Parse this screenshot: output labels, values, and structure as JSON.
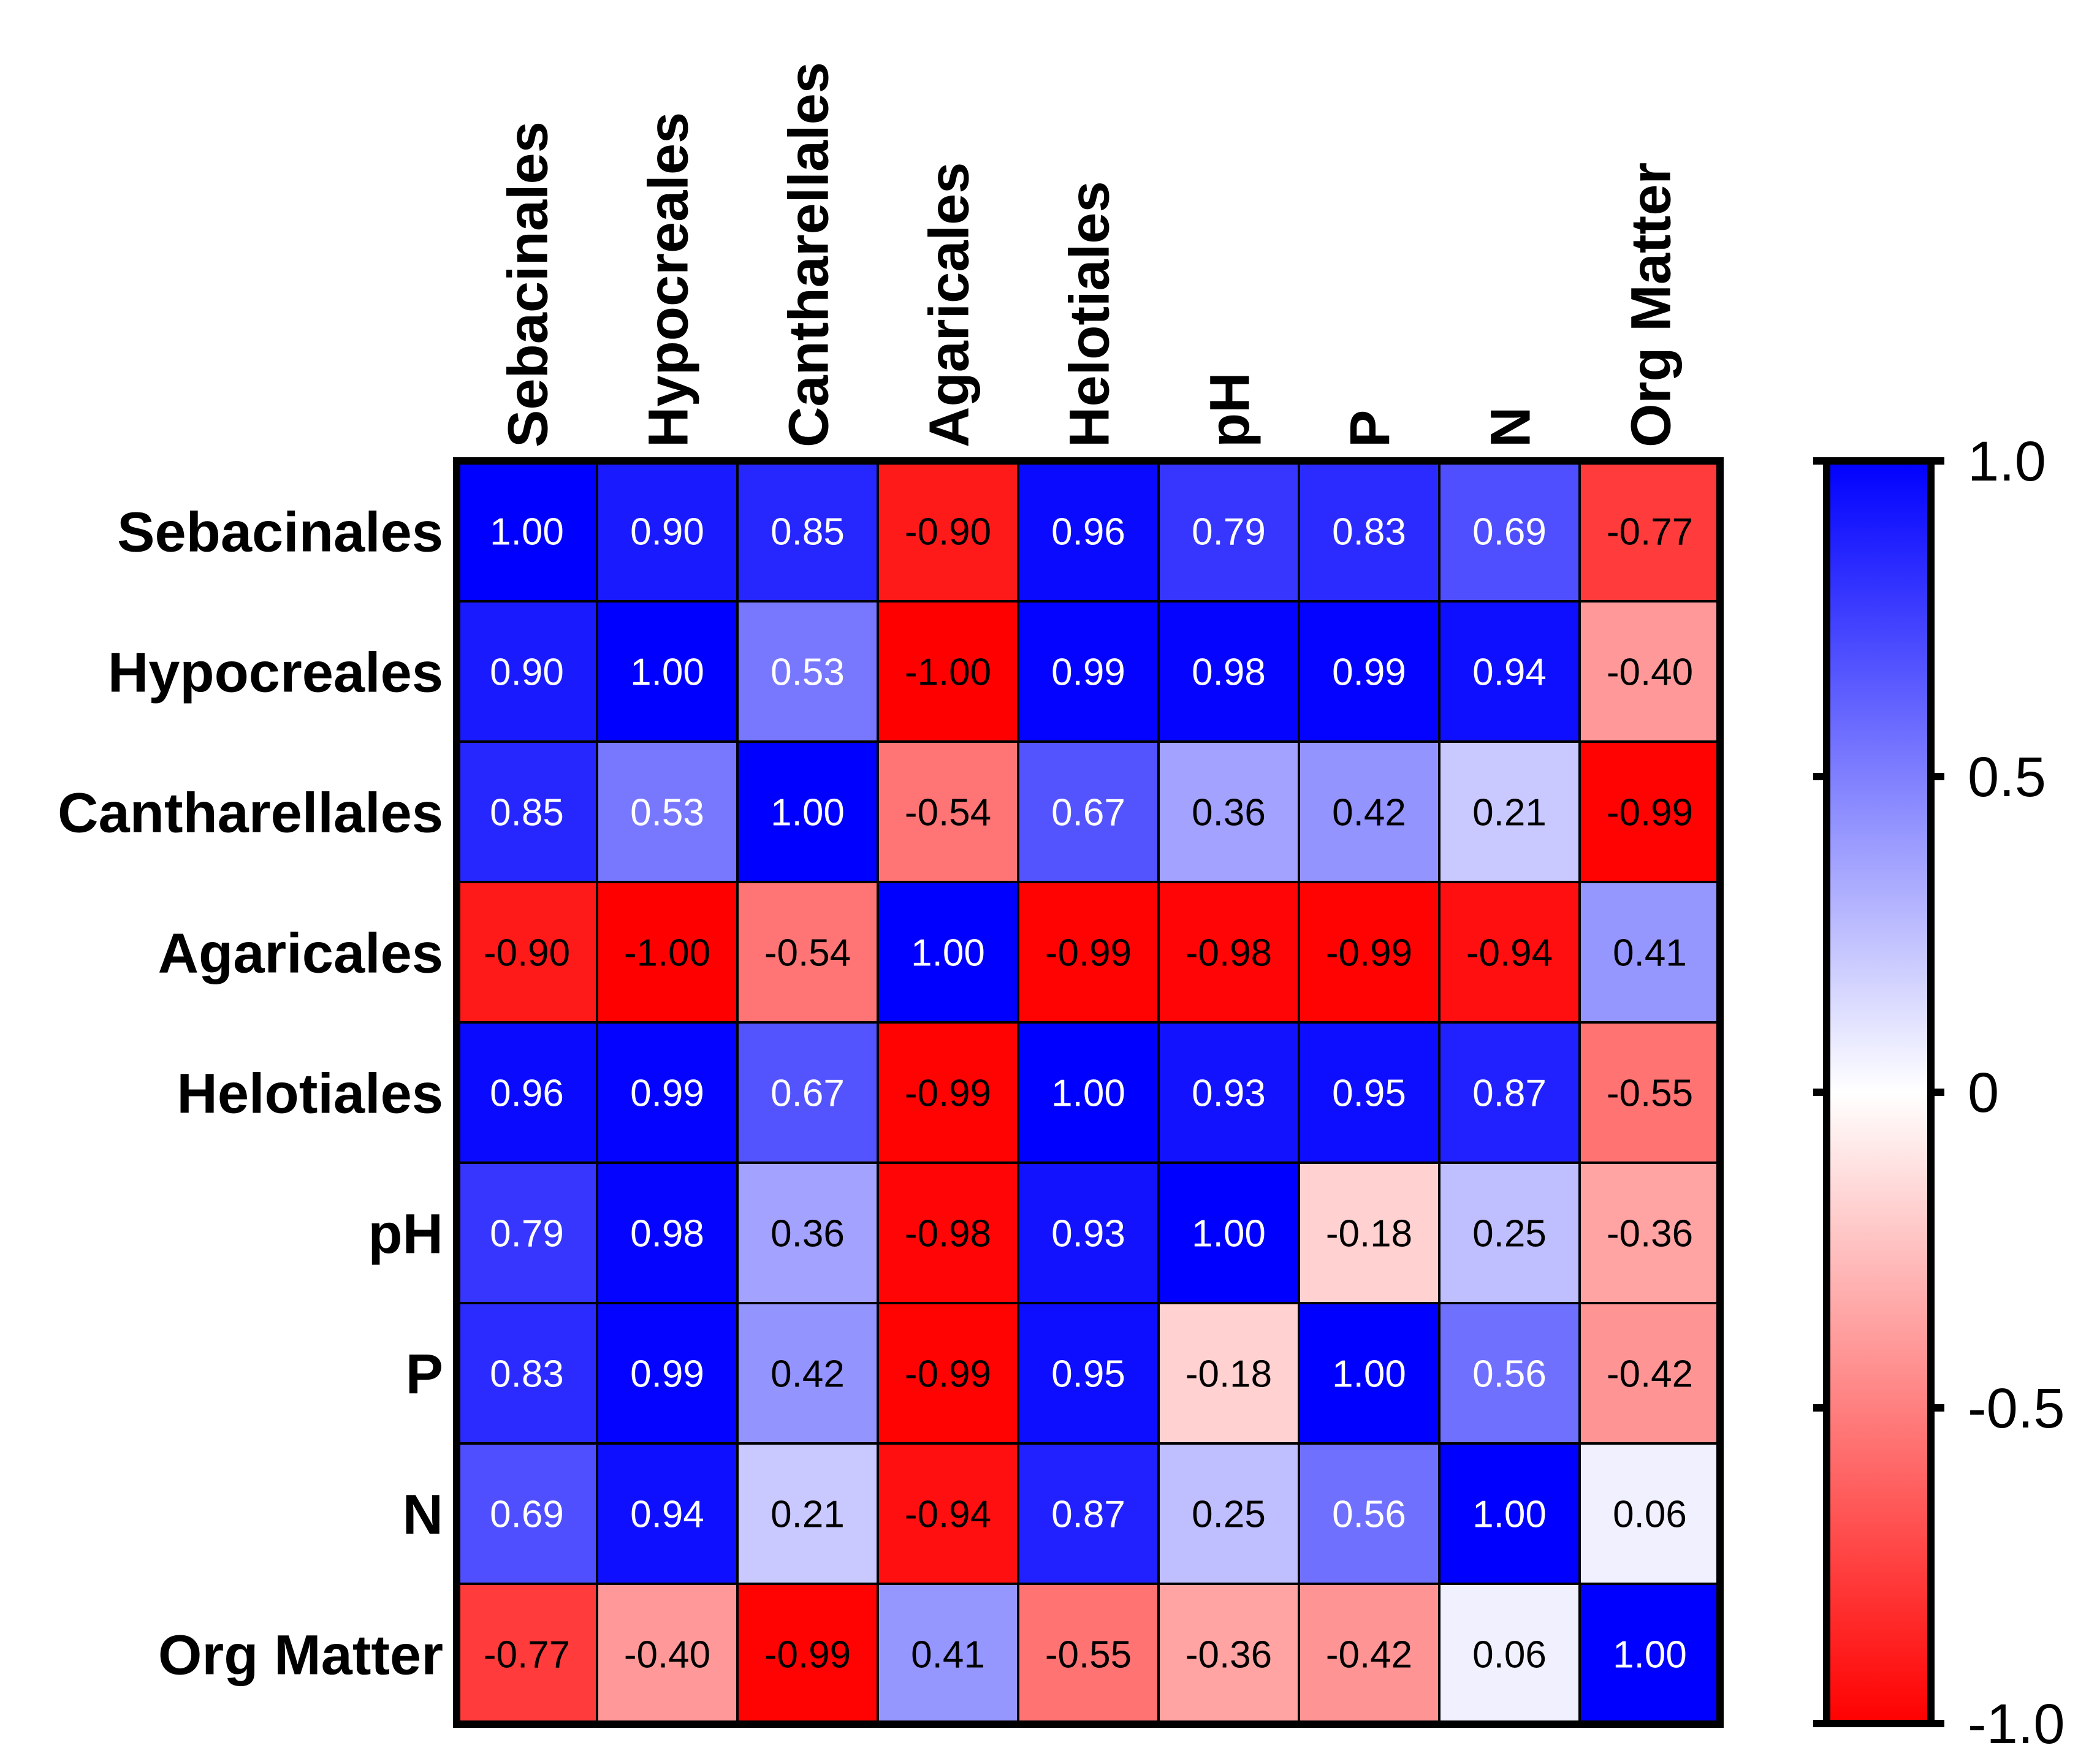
{
  "chart_data": {
    "type": "heatmap",
    "title": "",
    "row_labels": [
      "Sebacinales",
      "Hypocreales",
      "Cantharellales",
      "Agaricales",
      "Helotiales",
      "pH",
      "P",
      "N",
      "Org Matter"
    ],
    "col_labels": [
      "Sebacinales",
      "Hypocreales",
      "Cantharellales",
      "Agaricales",
      "Helotiales",
      "pH",
      "P",
      "N",
      "Org Matter"
    ],
    "values": [
      [
        1.0,
        0.9,
        0.85,
        -0.9,
        0.96,
        0.79,
        0.83,
        0.69,
        -0.77
      ],
      [
        0.9,
        1.0,
        0.53,
        -1.0,
        0.99,
        0.98,
        0.99,
        0.94,
        -0.4
      ],
      [
        0.85,
        0.53,
        1.0,
        -0.54,
        0.67,
        0.36,
        0.42,
        0.21,
        -0.99
      ],
      [
        -0.9,
        -1.0,
        -0.54,
        1.0,
        -0.99,
        -0.98,
        -0.99,
        -0.94,
        0.41
      ],
      [
        0.96,
        0.99,
        0.67,
        -0.99,
        1.0,
        0.93,
        0.95,
        0.87,
        -0.55
      ],
      [
        0.79,
        0.98,
        0.36,
        -0.98,
        0.93,
        1.0,
        -0.18,
        0.25,
        -0.36
      ],
      [
        0.83,
        0.99,
        0.42,
        -0.99,
        0.95,
        -0.18,
        1.0,
        0.56,
        -0.42
      ],
      [
        0.69,
        0.94,
        0.21,
        -0.94,
        0.87,
        0.25,
        0.56,
        1.0,
        0.06
      ],
      [
        -0.77,
        -0.4,
        -0.99,
        0.41,
        -0.55,
        -0.36,
        -0.42,
        0.06,
        1.0
      ]
    ],
    "value_labels": [
      [
        "1.00",
        "0.90",
        "0.85",
        "-0.90",
        "0.96",
        "0.79",
        "0.83",
        "0.69",
        "-0.77"
      ],
      [
        "0.90",
        "1.00",
        "0.53",
        "-1.00",
        "0.99",
        "0.98",
        "0.99",
        "0.94",
        "-0.40"
      ],
      [
        "0.85",
        "0.53",
        "1.00",
        "-0.54",
        "0.67",
        "0.36",
        "0.42",
        "0.21",
        "-0.99"
      ],
      [
        "-0.90",
        "-1.00",
        "-0.54",
        "1.00",
        "-0.99",
        "-0.98",
        "-0.99",
        "-0.94",
        "0.41"
      ],
      [
        "0.96",
        "0.99",
        "0.67",
        "-0.99",
        "1.00",
        "0.93",
        "0.95",
        "0.87",
        "-0.55"
      ],
      [
        "0.79",
        "0.98",
        "0.36",
        "-0.98",
        "0.93",
        "1.00",
        "-0.18",
        "0.25",
        "-0.36"
      ],
      [
        "0.83",
        "0.99",
        "0.42",
        "-0.99",
        "0.95",
        "-0.18",
        "1.00",
        "0.56",
        "-0.42"
      ],
      [
        "0.69",
        "0.94",
        "0.21",
        "-0.94",
        "0.87",
        "0.25",
        "0.56",
        "1.00",
        "0.06"
      ],
      [
        "-0.77",
        "-0.40",
        "-0.99",
        "0.41",
        "-0.55",
        "-0.36",
        "-0.42",
        "0.06",
        "1.00"
      ]
    ],
    "colorbar": {
      "range": [
        -1.0,
        1.0
      ],
      "ticks": [
        1.0,
        0.5,
        0,
        -0.5,
        -1.0
      ],
      "tick_labels": [
        "1.0",
        "0.5",
        "0",
        "-0.5",
        "-1.0"
      ],
      "colors": {
        "negative": "#ff0000",
        "zero": "#ffffff",
        "positive": "#0000ff"
      }
    }
  }
}
